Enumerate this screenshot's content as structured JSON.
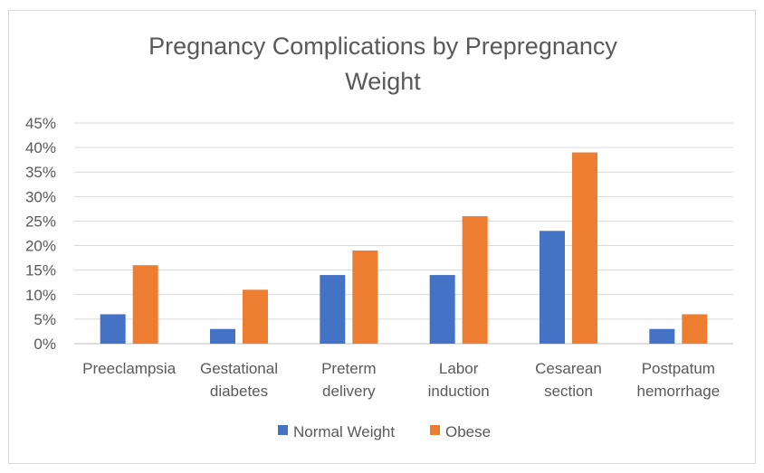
{
  "chart_data": {
    "type": "bar",
    "title_lines": [
      "Pregnancy Complications by Prepregnancy",
      "Weight"
    ],
    "categories": [
      [
        "Preeclampsia"
      ],
      [
        "Gestational",
        "diabetes"
      ],
      [
        "Preterm",
        "delivery"
      ],
      [
        "Labor",
        "induction"
      ],
      [
        "Cesarean",
        "section"
      ],
      [
        "Postpatum",
        "hemorrhage"
      ]
    ],
    "series": [
      {
        "name": "Normal Weight",
        "color": "#4472c4",
        "values": [
          6,
          3,
          14,
          14,
          23,
          3
        ]
      },
      {
        "name": "Obese",
        "color": "#ed7d31",
        "values": [
          16,
          11,
          19,
          26,
          39,
          6
        ]
      }
    ],
    "ylim": [
      0,
      45
    ],
    "yticks": [
      "0%",
      "5%",
      "10%",
      "15%",
      "20%",
      "25%",
      "30%",
      "35%",
      "40%",
      "45%"
    ],
    "grid": true,
    "legend_position": "bottom"
  }
}
